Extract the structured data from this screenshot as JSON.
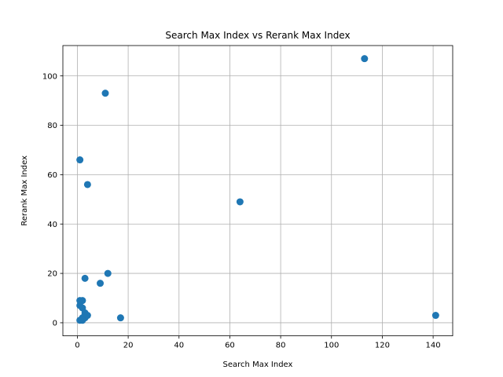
{
  "chart_data": {
    "type": "scatter",
    "title": "Search Max Index vs Rerank Max Index",
    "xlabel": "Search Max Index",
    "ylabel": "Rerank Max Index",
    "xlim": [
      -5.7,
      147.7
    ],
    "ylim": [
      -5.3,
      112.3
    ],
    "xticks": [
      0,
      20,
      40,
      60,
      80,
      100,
      120,
      140
    ],
    "yticks": [
      0,
      20,
      40,
      60,
      80,
      100
    ],
    "grid": true,
    "marker_color": "#1f77b4",
    "points": [
      {
        "x": 113,
        "y": 107
      },
      {
        "x": 11,
        "y": 93
      },
      {
        "x": 1,
        "y": 66
      },
      {
        "x": 4,
        "y": 56
      },
      {
        "x": 64,
        "y": 49
      },
      {
        "x": 12,
        "y": 20
      },
      {
        "x": 3,
        "y": 18
      },
      {
        "x": 9,
        "y": 16
      },
      {
        "x": 1,
        "y": 9
      },
      {
        "x": 2,
        "y": 9
      },
      {
        "x": 1,
        "y": 7
      },
      {
        "x": 2,
        "y": 6
      },
      {
        "x": 3,
        "y": 4
      },
      {
        "x": 3,
        "y": 3
      },
      {
        "x": 4,
        "y": 3
      },
      {
        "x": 2,
        "y": 2
      },
      {
        "x": 3,
        "y": 2
      },
      {
        "x": 1,
        "y": 1
      },
      {
        "x": 2,
        "y": 1
      },
      {
        "x": 17,
        "y": 2
      },
      {
        "x": 141,
        "y": 3
      }
    ]
  }
}
